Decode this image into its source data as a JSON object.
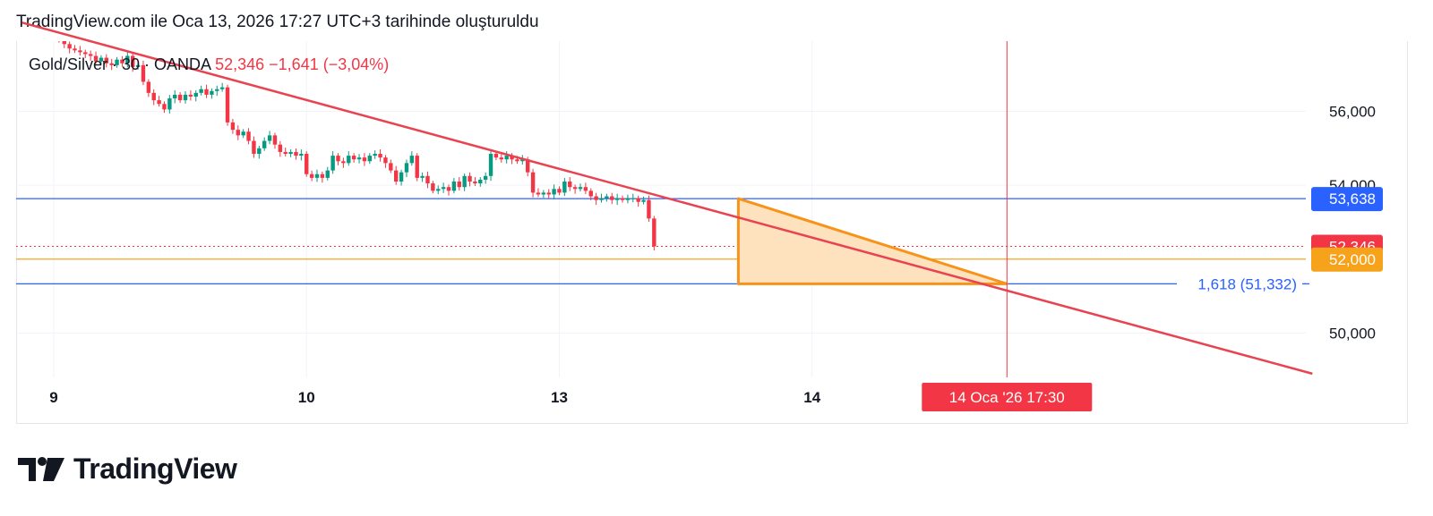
{
  "header": {
    "text": "TradingView.com ile Oca 13, 2026 17:27 UTC+3 tarihinde oluşturuldu"
  },
  "legend": {
    "symbol": "Gold/Silver · 30 · OANDA",
    "price": "52,346",
    "change": "−1,641 (−3,04%)"
  },
  "colors": {
    "up": "#089981",
    "down": "#f23645",
    "trendline": "#e84350",
    "level_blue": "#2962ff",
    "level_orange": "#f7a21b",
    "triangle_fill": "#fde2bd",
    "triangle_stroke": "#f7931a"
  },
  "price_labels": [
    {
      "text": "53,638",
      "value": 53638,
      "bg": "#2962ff"
    },
    {
      "text": "52,346",
      "value": 52346,
      "bg": "#f23645"
    },
    {
      "text": "52,000",
      "value": 52000,
      "bg": "#f7a21b"
    }
  ],
  "fib_label": {
    "text": "1,618 (51,332)",
    "value": 51332
  },
  "crosshair_label": {
    "text": "14 Oca '26   17:30"
  },
  "footer": {
    "brand": "TradingView"
  },
  "chart_data": {
    "type": "candlestick",
    "symbol": "Gold/Silver",
    "interval": "30",
    "exchange": "OANDA",
    "ylim": [
      48800,
      57900
    ],
    "y_ticks": [
      {
        "value": 56000,
        "label": "56,000"
      },
      {
        "value": 54000,
        "label": "54,000"
      },
      {
        "value": 50000,
        "label": "50,000"
      }
    ],
    "x_ticks": [
      {
        "index": 0,
        "label": "9"
      },
      {
        "index": 48,
        "label": "10"
      },
      {
        "index": 96,
        "label": "13"
      },
      {
        "index": 144,
        "label": "14"
      }
    ],
    "last_price": 52346,
    "change": -1641,
    "change_pct": -3.04,
    "closes": [
      58200,
      57950,
      57820,
      57700,
      57650,
      57600,
      57550,
      57500,
      57350,
      57450,
      57300,
      57250,
      57400,
      57300,
      57500,
      57200,
      57250,
      56800,
      56500,
      56300,
      56200,
      56050,
      56350,
      56450,
      56300,
      56450,
      56400,
      56500,
      56600,
      56450,
      56550,
      56600,
      56650,
      55700,
      55500,
      55350,
      55450,
      55200,
      54850,
      55000,
      55200,
      55350,
      55100,
      54900,
      54850,
      54900,
      54800,
      54850,
      54300,
      54200,
      54300,
      54200,
      54400,
      54800,
      54650,
      54600,
      54800,
      54700,
      54750,
      54650,
      54800,
      54850,
      54750,
      54600,
      54400,
      54100,
      54350,
      54600,
      54800,
      54200,
      54250,
      54050,
      53850,
      53900,
      53950,
      53850,
      54100,
      53950,
      54250,
      54100,
      54050,
      54150,
      54250,
      54850,
      54750,
      54700,
      54800,
      54700,
      54650,
      54700,
      54350,
      53800,
      53750,
      53800,
      53750,
      53900,
      53800,
      54100,
      53950,
      53900,
      53950,
      53850,
      53700,
      53600,
      53650,
      53700,
      53600,
      53650,
      53600,
      53650,
      53650,
      53550,
      53600,
      53100,
      52346
    ],
    "trendline": {
      "from": {
        "index": -6,
        "price": 58400
      },
      "to": {
        "index": 239,
        "price": 48900
      }
    },
    "levels": [
      {
        "price": 53638,
        "style": "solid",
        "color": "#2962ff"
      },
      {
        "price": 52346,
        "style": "dotted",
        "color": "#f23645"
      },
      {
        "price": 52000,
        "style": "solid",
        "color": "#f7a21b"
      },
      {
        "price": 51332,
        "style": "solid",
        "color": "#2962ff"
      }
    ],
    "triangle": [
      {
        "index": 130,
        "price": 53638
      },
      {
        "index": 130,
        "price": 51332
      },
      {
        "index": 181,
        "price": 51332
      }
    ],
    "crosshair": {
      "index": 181,
      "label": "14 Oca '26   17:30"
    }
  }
}
